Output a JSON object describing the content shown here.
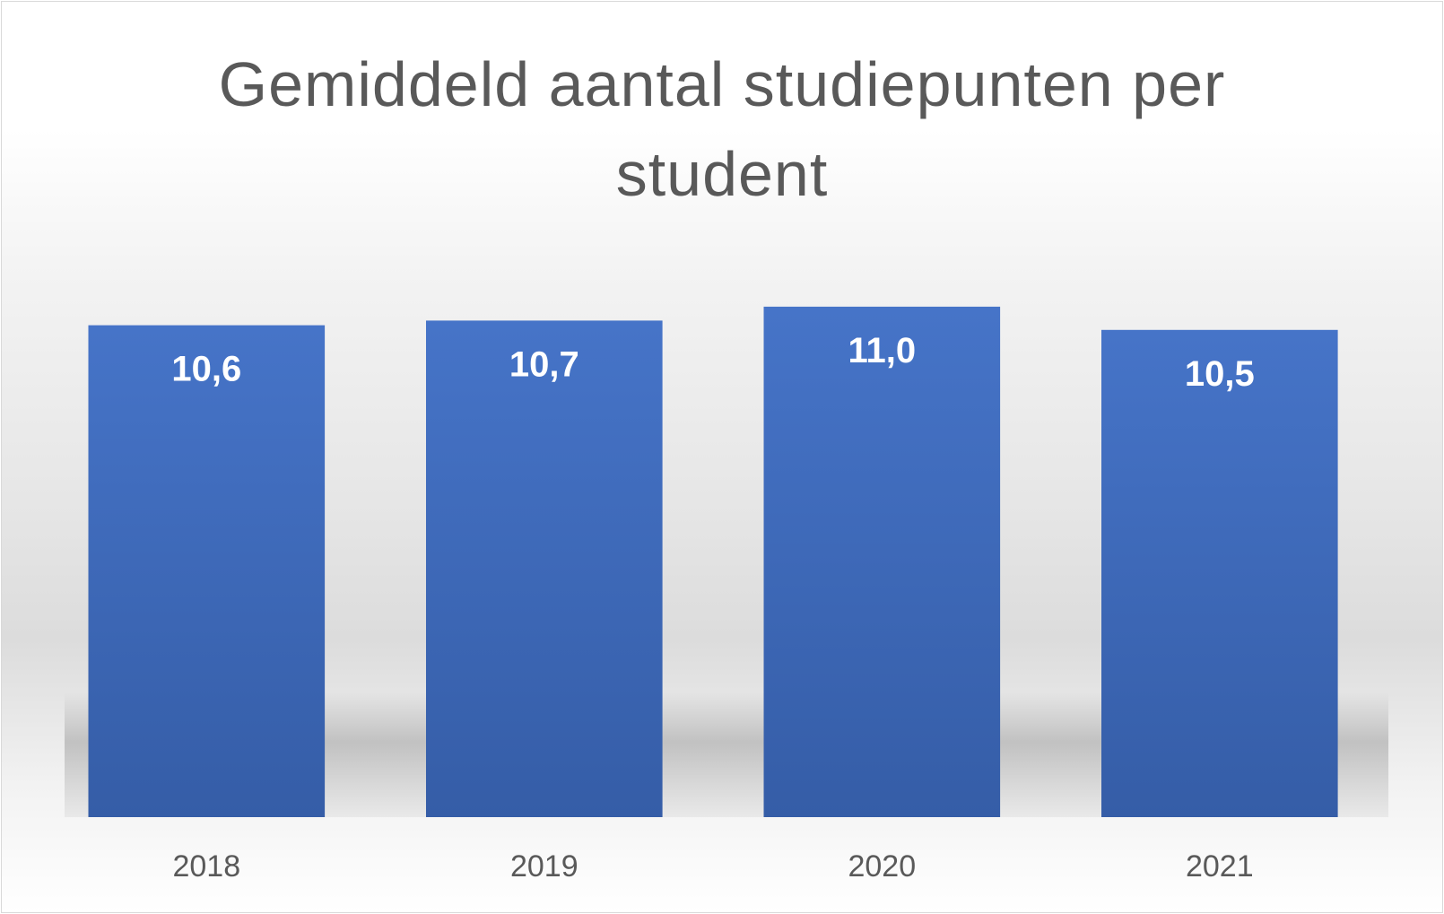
{
  "chart_data": {
    "type": "bar",
    "title": "Gemiddeld aantal studiepunten per student",
    "xlabel": "",
    "ylabel": "",
    "categories": [
      "2018",
      "2019",
      "2020",
      "2021"
    ],
    "values": [
      10.6,
      10.7,
      11.0,
      10.5
    ],
    "data_labels": [
      "10,6",
      "10,7",
      "11,0",
      "10,5"
    ],
    "ylim": [
      0,
      12.1
    ],
    "grid": false,
    "legend": "none",
    "bar_color": "#4472C4"
  }
}
